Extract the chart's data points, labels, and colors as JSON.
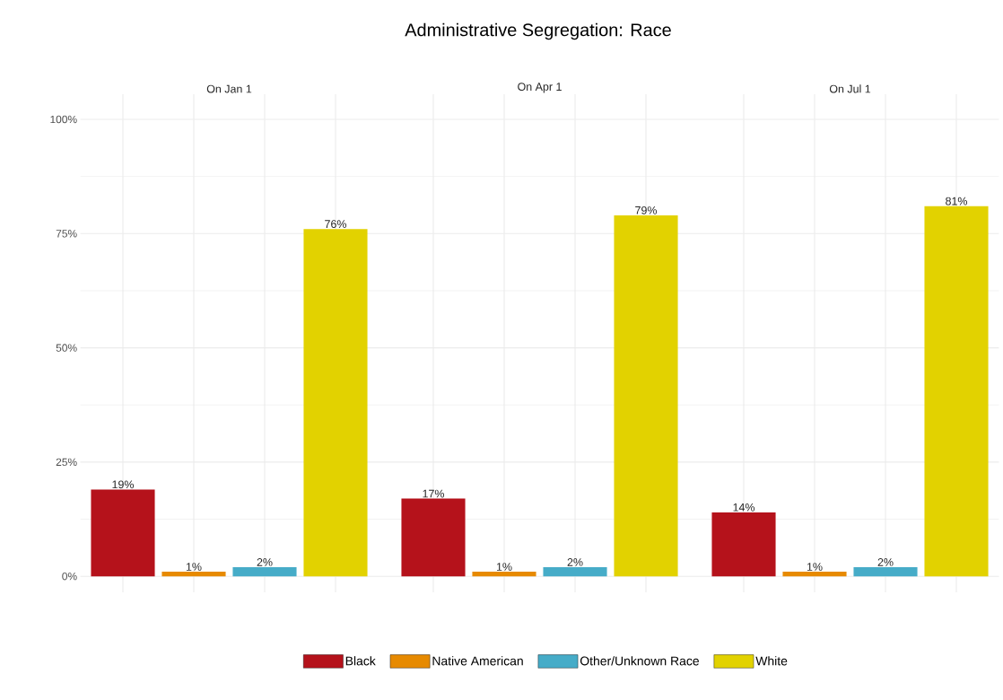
{
  "chart_data": {
    "type": "bar",
    "title": "Administrative Segregation: Race",
    "categories": [
      "On Jan 1",
      "On Apr 1",
      "On Jul 1"
    ],
    "series": [
      {
        "name": "Black",
        "color": "#b5121b",
        "values": [
          19,
          17,
          14
        ],
        "value_labels": [
          "19%",
          "17%",
          "14%"
        ]
      },
      {
        "name": "Native American",
        "color": "#e78a00",
        "values": [
          1,
          1,
          1
        ],
        "value_labels": [
          "1%",
          "1%",
          "1%"
        ]
      },
      {
        "name": "Other/Unknown Race",
        "color": "#46acc8",
        "values": [
          2,
          2,
          2
        ],
        "value_labels": [
          "2%",
          "2%",
          "2%"
        ]
      },
      {
        "name": "White",
        "color": "#e2d200",
        "values": [
          76,
          79,
          81
        ],
        "value_labels": [
          "76%",
          "79%",
          "81%"
        ]
      }
    ],
    "ylim": [
      -3.5,
      105.5
    ],
    "yticks": [
      {
        "value": 0,
        "label": "0%"
      },
      {
        "value": 25,
        "label": "25%"
      },
      {
        "value": 50,
        "label": "50%"
      },
      {
        "value": 75,
        "label": "75%"
      },
      {
        "value": 100,
        "label": "100%"
      }
    ],
    "grid": true,
    "legend": "bottom"
  }
}
